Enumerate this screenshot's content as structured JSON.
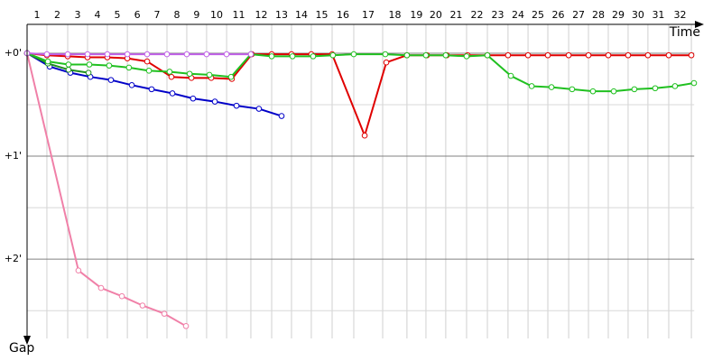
{
  "chart_data": {
    "type": "line",
    "x_label": "Time",
    "y_label": "Gap",
    "xlim": [
      0,
      33
    ],
    "ylim": [
      -0.28,
      2.77
    ],
    "xticks": [
      {
        "value": 0.98,
        "label": "1"
      },
      {
        "value": 2.01,
        "label": "2"
      },
      {
        "value": 2.99,
        "label": "3"
      },
      {
        "value": 3.97,
        "label": "4"
      },
      {
        "value": 4.96,
        "label": "5"
      },
      {
        "value": 5.94,
        "label": "6"
      },
      {
        "value": 6.92,
        "label": "7"
      },
      {
        "value": 7.9,
        "label": "8"
      },
      {
        "value": 8.88,
        "label": "9"
      },
      {
        "value": 9.87,
        "label": "10"
      },
      {
        "value": 11.07,
        "label": "11"
      },
      {
        "value": 12.1,
        "label": "12"
      },
      {
        "value": 13.08,
        "label": "13"
      },
      {
        "value": 14.06,
        "label": "14"
      },
      {
        "value": 15.09,
        "label": "15"
      },
      {
        "value": 16.16,
        "label": "16"
      },
      {
        "value": 17.59,
        "label": "17"
      },
      {
        "value": 18.79,
        "label": "18"
      },
      {
        "value": 19.73,
        "label": "19"
      },
      {
        "value": 20.71,
        "label": "20"
      },
      {
        "value": 21.74,
        "label": "21"
      },
      {
        "value": 22.77,
        "label": "22"
      },
      {
        "value": 23.79,
        "label": "23"
      },
      {
        "value": 24.78,
        "label": "24"
      },
      {
        "value": 25.76,
        "label": "25"
      },
      {
        "value": 26.79,
        "label": "26"
      },
      {
        "value": 27.77,
        "label": "27"
      },
      {
        "value": 28.75,
        "label": "28"
      },
      {
        "value": 29.73,
        "label": "29"
      },
      {
        "value": 30.71,
        "label": "30"
      },
      {
        "value": 31.74,
        "label": "31"
      },
      {
        "value": 32.86,
        "label": "32"
      }
    ],
    "yticks": [
      {
        "value": 0,
        "label": "+0'"
      },
      {
        "value": 1,
        "label": "+1'"
      },
      {
        "value": 2,
        "label": "+2'"
      }
    ],
    "minor_yticks": [
      0.5,
      1.5,
      2.5
    ],
    "grid": true,
    "series": [
      {
        "color": "#f080a8",
        "x": [
          0,
          2.54,
          3.66,
          4.69,
          5.71,
          6.79,
          7.86
        ],
        "values": [
          0,
          2.11,
          2.28,
          2.36,
          2.45,
          2.53,
          2.65
        ]
      },
      {
        "color": "#0000c8",
        "x": [
          0,
          1.12,
          2.14,
          3.13,
          4.15,
          5.18,
          6.16,
          7.19,
          8.21,
          9.29,
          10.36,
          11.47,
          12.59
        ],
        "values": [
          0,
          0.13,
          0.19,
          0.23,
          0.26,
          0.31,
          0.35,
          0.39,
          0.44,
          0.47,
          0.51,
          0.54,
          0.61
        ]
      },
      {
        "color": "#209020",
        "x": [
          0,
          1.03,
          2.05,
          3.04
        ],
        "values": [
          0,
          0.1,
          0.16,
          0.19
        ]
      },
      {
        "color": "#e00000",
        "x": [
          0,
          0.98,
          2.01,
          2.99,
          3.97,
          4.96,
          5.94,
          7.14,
          8.13,
          9.11,
          10.13,
          11.12,
          12.1,
          13.08,
          14.06,
          15.09,
          16.7,
          17.77,
          18.79,
          19.78,
          20.76,
          21.79,
          22.77,
          23.79,
          24.78,
          25.76,
          26.79,
          27.77,
          28.75,
          29.73,
          30.71,
          31.74,
          32.86
        ],
        "values": [
          0,
          0.02,
          0.03,
          0.04,
          0.04,
          0.05,
          0.08,
          0.23,
          0.24,
          0.24,
          0.25,
          0.01,
          0.01,
          0.01,
          0.01,
          0.01,
          0.8,
          0.09,
          0.02,
          0.02,
          0.02,
          0.02,
          0.02,
          0.02,
          0.02,
          0.02,
          0.02,
          0.02,
          0.02,
          0.02,
          0.02,
          0.02,
          0.02
        ]
      },
      {
        "color": "#20c020",
        "x": [
          0,
          1.03,
          2.05,
          3.08,
          4.06,
          5.04,
          6.03,
          7.05,
          8.04,
          9.02,
          10.09,
          11.07,
          12.1,
          13.13,
          14.15,
          15.13,
          16.16,
          17.72,
          18.79,
          19.73,
          20.71,
          21.74,
          22.77,
          23.93,
          24.96,
          25.94,
          26.96,
          27.99,
          29.02,
          30.04,
          31.07,
          32.05,
          32.99
        ],
        "values": [
          0,
          0.08,
          0.11,
          0.11,
          0.12,
          0.14,
          0.17,
          0.18,
          0.2,
          0.21,
          0.23,
          0.01,
          0.03,
          0.03,
          0.03,
          0.02,
          0.01,
          0.01,
          0.02,
          0.02,
          0.02,
          0.03,
          0.02,
          0.22,
          0.32,
          0.33,
          0.35,
          0.37,
          0.37,
          0.35,
          0.34,
          0.32,
          0.29
        ]
      },
      {
        "color": "#c060e8",
        "x": [
          0,
          0.98,
          2.01,
          2.99,
          3.97,
          4.96,
          5.94,
          6.92,
          7.9,
          8.88,
          9.87,
          11.07
        ],
        "values": [
          0,
          0.01,
          0.01,
          0.01,
          0.01,
          0.01,
          0.01,
          0.01,
          0.01,
          0.01,
          0.01,
          0.01
        ]
      }
    ]
  }
}
